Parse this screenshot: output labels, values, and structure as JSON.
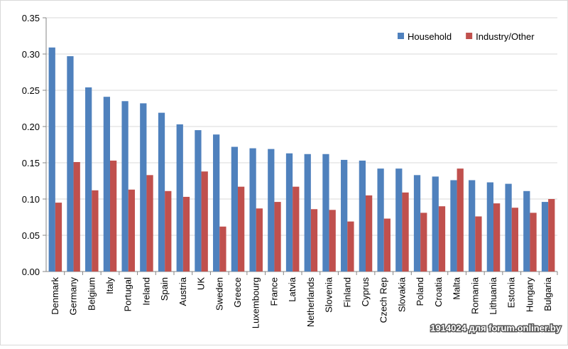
{
  "chart_data": {
    "type": "bar",
    "categories": [
      "Denmark",
      "Germany",
      "Belgium",
      "Italy",
      "Portugal",
      "Ireland",
      "Spain",
      "Austria",
      "UK",
      "Sweden",
      "Greece",
      "Luxembourg",
      "France",
      "Latvia",
      "Netherlands",
      "Slovenia",
      "Finland",
      "Cyprus",
      "Czech Rep",
      "Slovakia",
      "Poland",
      "Croatia",
      "Malta",
      "Romania",
      "Lithuania",
      "Estonia",
      "Hungary",
      "Bulgaria"
    ],
    "series": [
      {
        "name": "Household",
        "color": "#4f81bd",
        "values": [
          0.309,
          0.297,
          0.254,
          0.241,
          0.235,
          0.232,
          0.219,
          0.203,
          0.195,
          0.189,
          0.172,
          0.17,
          0.169,
          0.163,
          0.162,
          0.162,
          0.154,
          0.153,
          0.142,
          0.142,
          0.133,
          0.131,
          0.126,
          0.126,
          0.123,
          0.121,
          0.111,
          0.096
        ]
      },
      {
        "name": "Industry/Other",
        "color": "#c0504d",
        "values": [
          0.095,
          0.151,
          0.112,
          0.153,
          0.113,
          0.133,
          0.111,
          0.103,
          0.138,
          0.062,
          0.117,
          0.087,
          0.096,
          0.117,
          0.086,
          0.085,
          0.069,
          0.105,
          0.073,
          0.109,
          0.081,
          0.09,
          0.142,
          0.076,
          0.094,
          0.088,
          0.081,
          0.1
        ]
      }
    ],
    "ylim": [
      0,
      0.35
    ],
    "yticks": [
      {
        "value": 0,
        "label": "0.00"
      },
      0.05,
      {
        "value": 0.1,
        "label": "0.10"
      },
      0.15,
      {
        "value": 0.2,
        "label": "0.20"
      },
      0.25,
      {
        "value": 0.3,
        "label": "0.30"
      },
      0.35
    ],
    "grid": true,
    "legend": "top-right",
    "watermark": "1914024 для forum.onliner.by"
  }
}
